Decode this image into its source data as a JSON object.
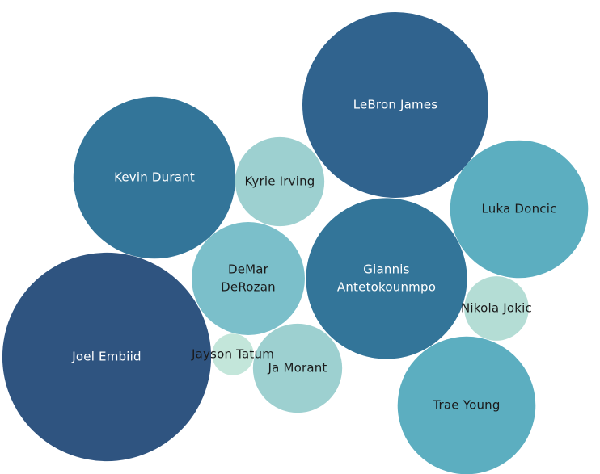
{
  "chart_data": {
    "type": "bubble",
    "title": "",
    "legend": "none",
    "bubbles": [
      {
        "label": [
          "LeBron James"
        ],
        "value": 1.0,
        "color": "#30638E",
        "text_color": "#ffffff"
      },
      {
        "label": [
          "Joel Embiid"
        ],
        "value": 1.26,
        "color": "#2F5480",
        "text_color": "#ffffff"
      },
      {
        "label": [
          "Giannis",
          "Antetokounmpo"
        ],
        "value": 0.75,
        "color": "#337599",
        "text_color": "#ffffff"
      },
      {
        "label": [
          "Kevin Durant"
        ],
        "value": 0.76,
        "color": "#337599",
        "text_color": "#ffffff"
      },
      {
        "label": [
          "Luka Doncic"
        ],
        "value": 0.55,
        "color": "#5CAEC0",
        "text_color": "#1a1a1a"
      },
      {
        "label": [
          "Trae Young"
        ],
        "value": 0.55,
        "color": "#5CAEC0",
        "text_color": "#1a1a1a"
      },
      {
        "label": [
          "DeMar",
          "DeRozan"
        ],
        "value": 0.37,
        "color": "#7BBFCA",
        "text_color": "#1a1a1a"
      },
      {
        "label": [
          "Kyrie Irving"
        ],
        "value": 0.23,
        "color": "#9DD0D0",
        "text_color": "#1a1a1a"
      },
      {
        "label": [
          "Ja Morant"
        ],
        "value": 0.23,
        "color": "#9DD0D0",
        "text_color": "#1a1a1a"
      },
      {
        "label": [
          "Nikola Jokic"
        ],
        "value": 0.12,
        "color": "#B4DDD5",
        "text_color": "#1a1a1a"
      },
      {
        "label": [
          "Jayson Tatum"
        ],
        "value": 0.05,
        "color": "#C3E6DA",
        "text_color": "#1a1a1a"
      }
    ]
  }
}
